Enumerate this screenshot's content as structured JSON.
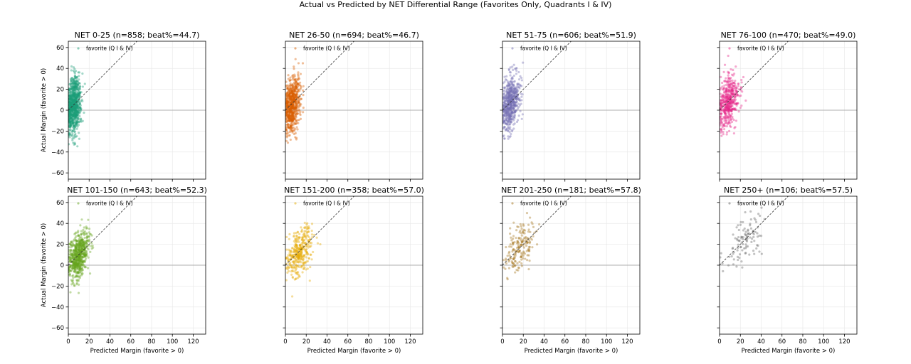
{
  "suptitle": "Actual vs Predicted by NET Differential Range (Favorites Only, Quadrants I & IV)",
  "chart_data": {
    "type": "scatter",
    "xlabel": "Predicted Margin (favorite > 0)",
    "ylabel": "Actual Margin (favorite > 0)",
    "xlim": [
      0,
      132
    ],
    "ylim": [
      -66,
      66
    ],
    "xticks": [
      0,
      20,
      40,
      60,
      80,
      100,
      120
    ],
    "yticks": [
      -60,
      -40,
      -20,
      0,
      20,
      40,
      60
    ],
    "grid": true,
    "reference_lines": [
      "y = x (dashed)",
      "y = 0 (horizontal)"
    ],
    "legend_label": "favorite (Q I & IV)",
    "legend_position": "upper-left",
    "panels": [
      {
        "title": "NET 0-25 (n=858; beat%=44.7)",
        "range": "0-25",
        "n": 858,
        "beat_pct": 44.7,
        "color": "#1b9e77",
        "x_mean": 5,
        "x_sd": 3.5,
        "x_max": 22,
        "y_slope": 0.9,
        "y_sd": 13
      },
      {
        "title": "NET 26-50 (n=694; beat%=46.7)",
        "range": "26-50",
        "n": 694,
        "beat_pct": 46.7,
        "color": "#d95f02",
        "x_mean": 6,
        "x_sd": 4,
        "x_max": 26,
        "y_slope": 0.9,
        "y_sd": 12.5
      },
      {
        "title": "NET 51-75 (n=606; beat%=51.9)",
        "range": "51-75",
        "n": 606,
        "beat_pct": 51.9,
        "color": "#7570b3",
        "x_mean": 7.5,
        "x_sd": 4.5,
        "x_max": 28,
        "y_slope": 0.9,
        "y_sd": 12
      },
      {
        "title": "NET 76-100 (n=470; beat%=49.0)",
        "range": "76-100",
        "n": 470,
        "beat_pct": 49.0,
        "color": "#e7298a",
        "x_mean": 9,
        "x_sd": 5,
        "x_max": 30,
        "y_slope": 0.9,
        "y_sd": 12
      },
      {
        "title": "NET 101-150 (n=643; beat%=52.3)",
        "range": "101-150",
        "n": 643,
        "beat_pct": 52.3,
        "color": "#66a61e",
        "x_mean": 10,
        "x_sd": 5,
        "x_max": 24,
        "y_slope": 0.95,
        "y_sd": 11
      },
      {
        "title": "NET 151-200 (n=358; beat%=57.0)",
        "range": "151-200",
        "n": 358,
        "beat_pct": 57.0,
        "color": "#e6ab02",
        "x_mean": 13,
        "x_sd": 6,
        "x_max": 34,
        "y_slope": 0.95,
        "y_sd": 11
      },
      {
        "title": "NET 201-250 (n=181; beat%=57.8)",
        "range": "201-250",
        "n": 181,
        "beat_pct": 57.8,
        "color": "#a6761d",
        "x_mean": 17,
        "x_sd": 7,
        "x_max": 36,
        "y_slope": 1.0,
        "y_sd": 11
      },
      {
        "title": "NET 250+ (n=106; beat%=57.5)",
        "range": "250+",
        "n": 106,
        "beat_pct": 57.5,
        "color": "#666666",
        "x_mean": 24,
        "x_sd": 9,
        "x_max": 44,
        "y_slope": 1.0,
        "y_sd": 11
      }
    ]
  }
}
